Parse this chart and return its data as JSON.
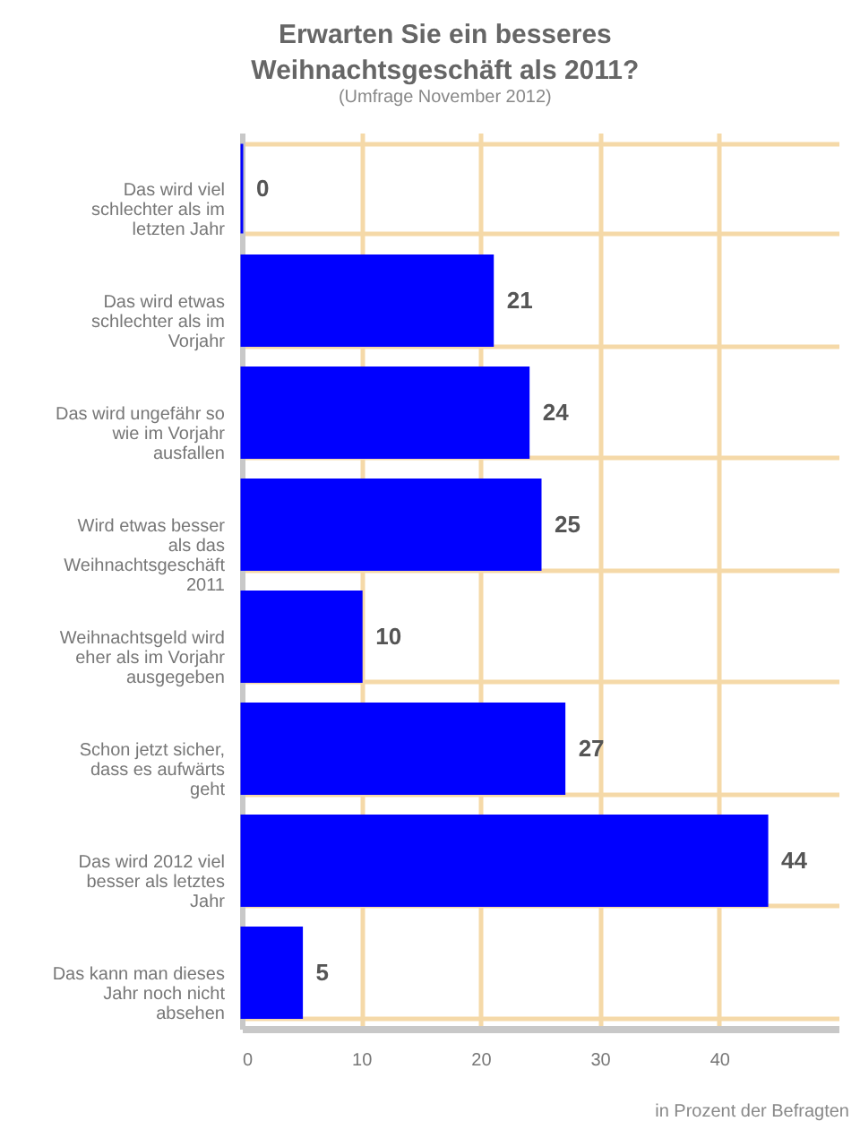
{
  "chart_data": {
    "type": "bar",
    "orientation": "horizontal",
    "title": "Erwarten Sie ein besseres Weihnachtsgeschäft als 2011?",
    "subtitle": "(Umfrage November 2012)",
    "categories": [
      "Das wird viel schlechter als im letzten Jahr",
      "Das wird etwas schlechter als im Vorjahr",
      "Das wird ungefähr so wie im Vorjahr ausfallen",
      "Wird etwas besser als das Weihnachtsgeschäft 2011",
      "Weihnachtsgeld wird eher als im Vorjahr ausgegeben",
      "Schon jetzt sicher, dass es aufwärts geht",
      "Das wird 2012 viel besser als letztes Jahr",
      "Das kann man dieses Jahr noch nicht absehen"
    ],
    "values": [
      0,
      21,
      24,
      25,
      10,
      27,
      44,
      5
    ],
    "color": "#0000ff",
    "xlim": [
      0,
      50
    ],
    "xticks": [
      0,
      10,
      20,
      30,
      40
    ],
    "grid": true,
    "data_labels": true,
    "annotations": [
      "in Prozent der Befragten"
    ]
  }
}
